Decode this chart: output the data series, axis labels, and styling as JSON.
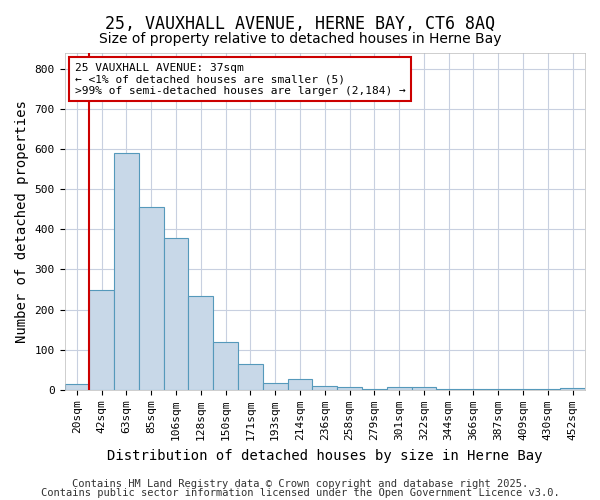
{
  "title1": "25, VAUXHALL AVENUE, HERNE BAY, CT6 8AQ",
  "title2": "Size of property relative to detached houses in Herne Bay",
  "xlabel": "Distribution of detached houses by size in Herne Bay",
  "ylabel": "Number of detached properties",
  "bar_labels": [
    "20sqm",
    "42sqm",
    "63sqm",
    "85sqm",
    "106sqm",
    "128sqm",
    "150sqm",
    "171sqm",
    "193sqm",
    "214sqm",
    "236sqm",
    "258sqm",
    "279sqm",
    "301sqm",
    "322sqm",
    "344sqm",
    "366sqm",
    "387sqm",
    "409sqm",
    "430sqm",
    "452sqm"
  ],
  "bar_values": [
    15,
    250,
    590,
    455,
    378,
    235,
    120,
    65,
    18,
    28,
    10,
    8,
    3,
    8,
    8,
    2,
    3,
    2,
    2,
    2,
    5
  ],
  "bar_color": "#c8d8e8",
  "bar_edge_color": "#5599bb",
  "ylim": [
    0,
    840
  ],
  "yticks": [
    0,
    100,
    200,
    300,
    400,
    500,
    600,
    700,
    800
  ],
  "annotation_line1": "25 VAUXHALL AVENUE: 37sqm",
  "annotation_line2": "← <1% of detached houses are smaller (5)",
  "annotation_line3": ">99% of semi-detached houses are larger (2,184) →",
  "annotation_box_color": "#ffffff",
  "annotation_box_edge_color": "#cc0000",
  "red_line_x": 1,
  "footer1": "Contains HM Land Registry data © Crown copyright and database right 2025.",
  "footer2": "Contains public sector information licensed under the Open Government Licence v3.0.",
  "bg_color": "#ffffff",
  "plot_bg_color": "#ffffff",
  "grid_color": "#c8d0e0",
  "title_fontsize": 12,
  "subtitle_fontsize": 10,
  "axis_label_fontsize": 10,
  "tick_fontsize": 8,
  "annotation_fontsize": 8,
  "footer_fontsize": 7.5
}
